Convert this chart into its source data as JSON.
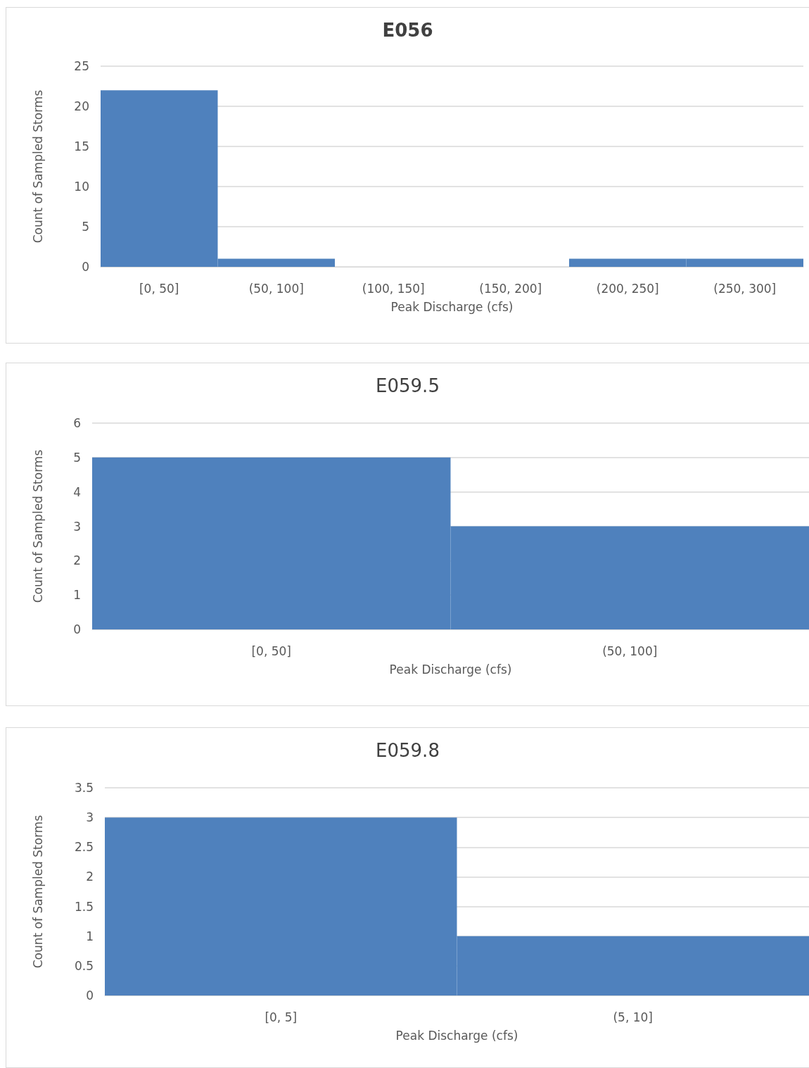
{
  "chart_data": [
    {
      "type": "bar",
      "title": "E056",
      "xlabel": "Peak Discharge (cfs)",
      "ylabel": "Count of Sampled Storms",
      "categories": [
        "[0, 50]",
        "(50, 100]",
        "(100, 150]",
        "(150, 200]",
        "(200, 250]",
        "(250, 300]"
      ],
      "values": [
        22,
        1,
        0,
        0,
        1,
        1
      ],
      "color": "#4f81bd",
      "ylim": [
        0,
        25
      ],
      "yticks": [
        0,
        5,
        10,
        15,
        20,
        25
      ],
      "grid": "y"
    },
    {
      "type": "bar",
      "title": "E059.5",
      "xlabel": "Peak Discharge (cfs)",
      "ylabel": "Count of Sampled Storms",
      "categories": [
        "[0, 50]",
        "(50, 100]"
      ],
      "values": [
        5,
        3
      ],
      "color": "#4f81bd",
      "ylim": [
        0,
        6
      ],
      "yticks": [
        0,
        1,
        2,
        3,
        4,
        5,
        6
      ],
      "grid": "y"
    },
    {
      "type": "bar",
      "title": "E059.8",
      "xlabel": "Peak Discharge (cfs)",
      "ylabel": "Count of Sampled Storms",
      "categories": [
        "[0, 5]",
        "(5, 10]"
      ],
      "values": [
        3,
        1
      ],
      "color": "#4f81bd",
      "ylim": [
        0,
        3.5
      ],
      "yticks": [
        0,
        0.5,
        1,
        1.5,
        2,
        2.5,
        3,
        3.5
      ],
      "grid": "y"
    }
  ]
}
